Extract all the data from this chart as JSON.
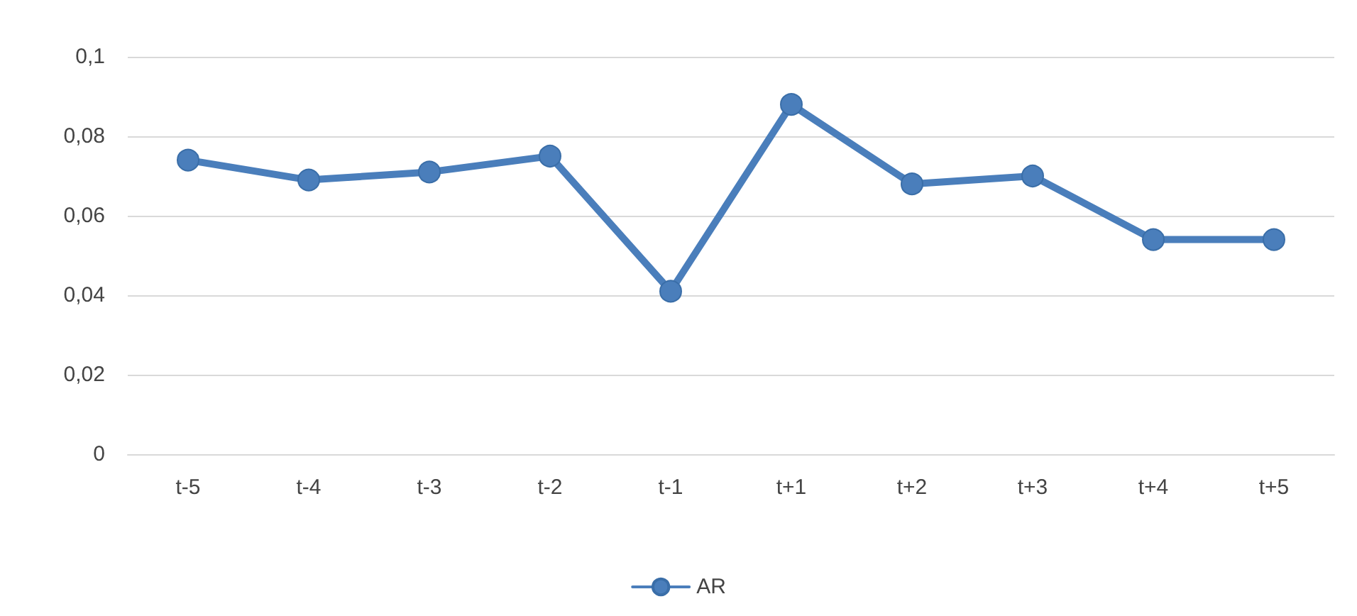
{
  "chart_data": {
    "type": "line",
    "categories": [
      "t-5",
      "t-4",
      "t-3",
      "t-2",
      "t-1",
      "t+1",
      "t+2",
      "t+3",
      "t+4",
      "t+5"
    ],
    "series": [
      {
        "name": "AR",
        "color": "#4a7ebb",
        "values": [
          0.074,
          0.069,
          0.071,
          0.075,
          0.041,
          0.088,
          0.068,
          0.07,
          0.054,
          0.054
        ]
      }
    ],
    "ylim": [
      0,
      0.1
    ],
    "yticks": [
      {
        "value": 0,
        "label": "0"
      },
      {
        "value": 0.02,
        "label": "0,02"
      },
      {
        "value": 0.04,
        "label": "0,04"
      },
      {
        "value": 0.06,
        "label": "0,06"
      },
      {
        "value": 0.08,
        "label": "0,08"
      },
      {
        "value": 0.1,
        "label": "0,1"
      }
    ],
    "grid": "y",
    "legend": "bottom",
    "marker": "circle",
    "line_style": "solid"
  }
}
